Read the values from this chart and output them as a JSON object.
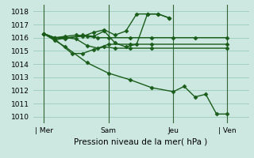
{
  "background_color": "#cce8e0",
  "grid_color": "#99ccbb",
  "line_color": "#1a5c1a",
  "vline_color": "#336633",
  "marker": "D",
  "marker_size": 2.5,
  "linewidth": 1.0,
  "ylim": [
    1009.5,
    1018.5
  ],
  "yticks": [
    1010,
    1011,
    1012,
    1013,
    1014,
    1015,
    1016,
    1017,
    1018
  ],
  "xlabel": "Pression niveau de la mer( hPa )",
  "xlabel_fontsize": 7.5,
  "tick_fontsize": 6.5,
  "xtick_labels": [
    "| Mer",
    "Sam",
    "Jeu",
    "| Ven"
  ],
  "xtick_positions": [
    1,
    4,
    7,
    9.5
  ],
  "vline_positions": [
    1,
    4,
    7,
    9.5
  ],
  "series": [
    [
      1016.3,
      1016.0,
      1016.1,
      1016.2,
      1016.1,
      1016.0,
      1016.0,
      1016.0,
      1016.0,
      1016.0,
      1016.0,
      1016.0
    ],
    [
      1016.3,
      1016.0,
      1015.9,
      1016.2,
      1016.1,
      1016.5,
      1015.6,
      1015.3,
      1015.5,
      1017.8,
      1017.8,
      1017.5
    ],
    [
      1016.3,
      1016.0,
      1016.0,
      1016.1,
      1016.4,
      1016.6,
      1016.2,
      1016.5,
      1017.8,
      1017.8,
      1017.8,
      1017.5
    ],
    [
      1016.3,
      1015.8,
      1016.0,
      1015.9,
      1015.4,
      1015.2,
      1015.5,
      1015.5,
      1015.5,
      1015.5
    ],
    [
      1016.3,
      1015.9,
      1014.8,
      1014.8,
      1015.1,
      1015.3,
      1015.2,
      1015.2,
      1015.2,
      1015.2
    ],
    [
      1016.3,
      1015.3,
      1014.1,
      1013.3,
      1012.8,
      1012.2,
      1011.9,
      1012.3,
      1011.5,
      1011.7,
      1010.2,
      1010.2
    ]
  ],
  "x_positions": [
    [
      1.0,
      1.5,
      2.0,
      2.5,
      3.0,
      3.5,
      4.0,
      5.0,
      6.0,
      7.0,
      8.0,
      9.5
    ],
    [
      1.0,
      1.5,
      2.0,
      2.8,
      3.3,
      3.8,
      4.3,
      4.8,
      5.3,
      5.8,
      6.3,
      6.8
    ],
    [
      1.0,
      1.5,
      2.0,
      2.8,
      3.3,
      3.8,
      4.3,
      4.8,
      5.3,
      5.8,
      6.3,
      6.8
    ],
    [
      1.0,
      1.5,
      2.0,
      2.5,
      3.0,
      3.5,
      4.0,
      5.0,
      6.0,
      9.5
    ],
    [
      1.0,
      1.5,
      2.3,
      2.8,
      3.3,
      3.8,
      4.3,
      5.0,
      6.0,
      9.5
    ],
    [
      1.0,
      2.0,
      3.0,
      4.0,
      5.0,
      6.0,
      7.0,
      7.5,
      8.0,
      8.5,
      9.0,
      9.5
    ]
  ]
}
